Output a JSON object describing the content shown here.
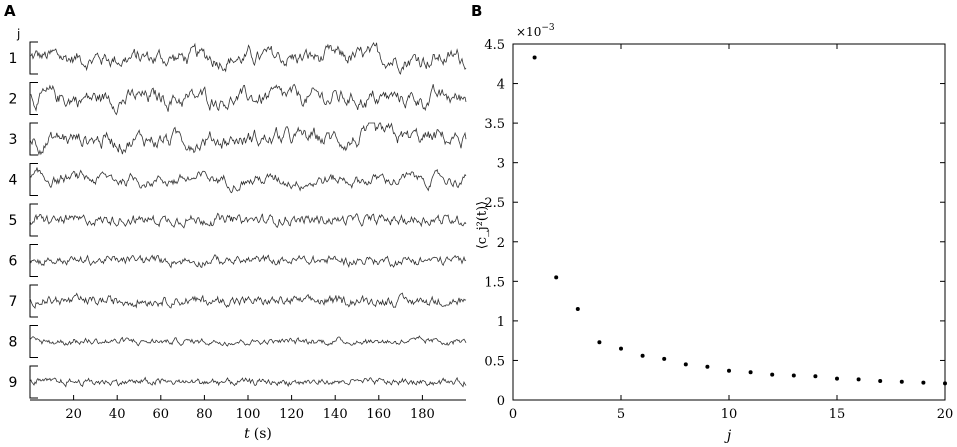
{
  "panels": {
    "a_label": "A",
    "b_label": "B"
  },
  "chart_data": [
    {
      "type": "line",
      "panel": "A",
      "row_axis_label": "j",
      "row_labels": [
        "1",
        "2",
        "3",
        "4",
        "5",
        "6",
        "7",
        "8",
        "9"
      ],
      "xlabel_var": "t",
      "xlabel_unit": "(s)",
      "xlim": [
        0,
        200
      ],
      "xticks": [
        20,
        40,
        60,
        80,
        100,
        120,
        140,
        160,
        180
      ],
      "grid": false,
      "series": [
        {
          "row": "1",
          "amplitude": 1.0,
          "smoothness": 4
        },
        {
          "row": "2",
          "amplitude": 1.0,
          "smoothness": 4
        },
        {
          "row": "3",
          "amplitude": 1.0,
          "smoothness": 5
        },
        {
          "row": "4",
          "amplitude": 0.7,
          "smoothness": 5
        },
        {
          "row": "5",
          "amplitude": 0.7,
          "smoothness": 1
        },
        {
          "row": "6",
          "amplitude": 0.6,
          "smoothness": 2
        },
        {
          "row": "7",
          "amplitude": 0.65,
          "smoothness": 1
        },
        {
          "row": "8",
          "amplitude": 0.4,
          "smoothness": 2
        },
        {
          "row": "9",
          "amplitude": 0.45,
          "smoothness": 1
        }
      ]
    },
    {
      "type": "scatter",
      "panel": "B",
      "xlabel": "j",
      "ylabel": "⟨c_j²(t)⟩",
      "scale_label_base": "×10",
      "scale_label_exp": "−3",
      "xlim": [
        0,
        20
      ],
      "ylim": [
        0,
        4.5
      ],
      "xticks": [
        0,
        5,
        10,
        15,
        20
      ],
      "yticks": [
        0,
        0.5,
        1,
        1.5,
        2,
        2.5,
        3,
        3.5,
        4,
        4.5
      ],
      "grid": false,
      "x": [
        1,
        2,
        3,
        4,
        5,
        6,
        7,
        8,
        9,
        10,
        11,
        12,
        13,
        14,
        15,
        16,
        17,
        18,
        19,
        20
      ],
      "y": [
        4.33,
        1.55,
        1.15,
        0.73,
        0.65,
        0.56,
        0.52,
        0.45,
        0.42,
        0.37,
        0.35,
        0.32,
        0.31,
        0.3,
        0.27,
        0.26,
        0.24,
        0.23,
        0.22,
        0.21
      ]
    }
  ]
}
